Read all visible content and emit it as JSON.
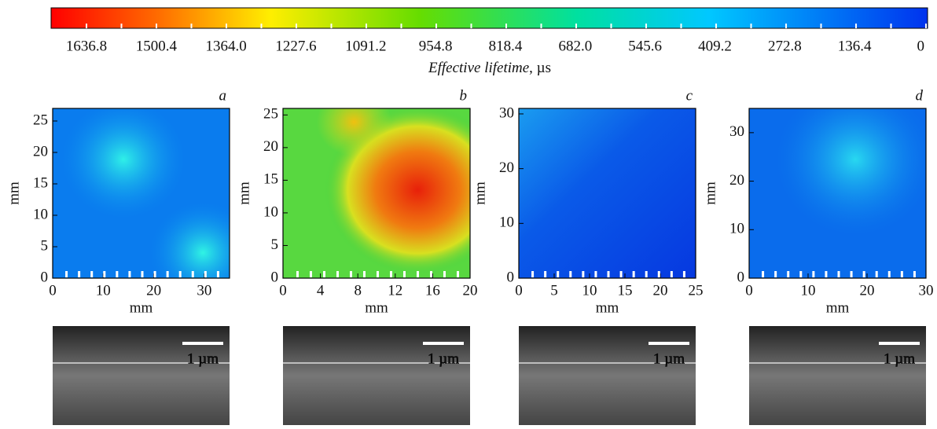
{
  "colorbar": {
    "ticks": [
      "1636.8",
      "1500.4",
      "1364.0",
      "1227.6",
      "1091.2",
      "954.8",
      "818.4",
      "682.0",
      "545.6",
      "409.2",
      "272.8",
      "136.4",
      "0"
    ],
    "label_italic": "Effective lifetime",
    "label_unit": ", µs"
  },
  "panels": [
    {
      "letter": "a",
      "xlabel": "mm",
      "ylabel": "mm",
      "xlim": [
        0,
        35
      ],
      "ylim": [
        0,
        27
      ],
      "xticks": [
        0,
        10,
        20,
        30
      ],
      "yticks": [
        0,
        5,
        10,
        15,
        20,
        25
      ],
      "scale": "1 µm"
    },
    {
      "letter": "b",
      "xlabel": "mm",
      "ylabel": "mm",
      "xlim": [
        0,
        20
      ],
      "ylim": [
        0,
        26
      ],
      "xticks": [
        0,
        4,
        8,
        12,
        16,
        20
      ],
      "yticks": [
        0,
        5,
        10,
        15,
        20,
        25
      ],
      "scale": "1 µm"
    },
    {
      "letter": "c",
      "xlabel": "mm",
      "ylabel": "mm",
      "xlim": [
        0,
        25
      ],
      "ylim": [
        0,
        31
      ],
      "xticks": [
        0,
        5,
        10,
        15,
        20,
        25
      ],
      "yticks": [
        0,
        10,
        20,
        30
      ],
      "scale": "1 µm"
    },
    {
      "letter": "d",
      "xlabel": "mm",
      "ylabel": "mm",
      "xlim": [
        0,
        30
      ],
      "ylim": [
        0,
        35
      ],
      "xticks": [
        0,
        10,
        20,
        30
      ],
      "yticks": [
        0,
        10,
        20,
        30
      ],
      "scale": "1 µm"
    }
  ]
}
